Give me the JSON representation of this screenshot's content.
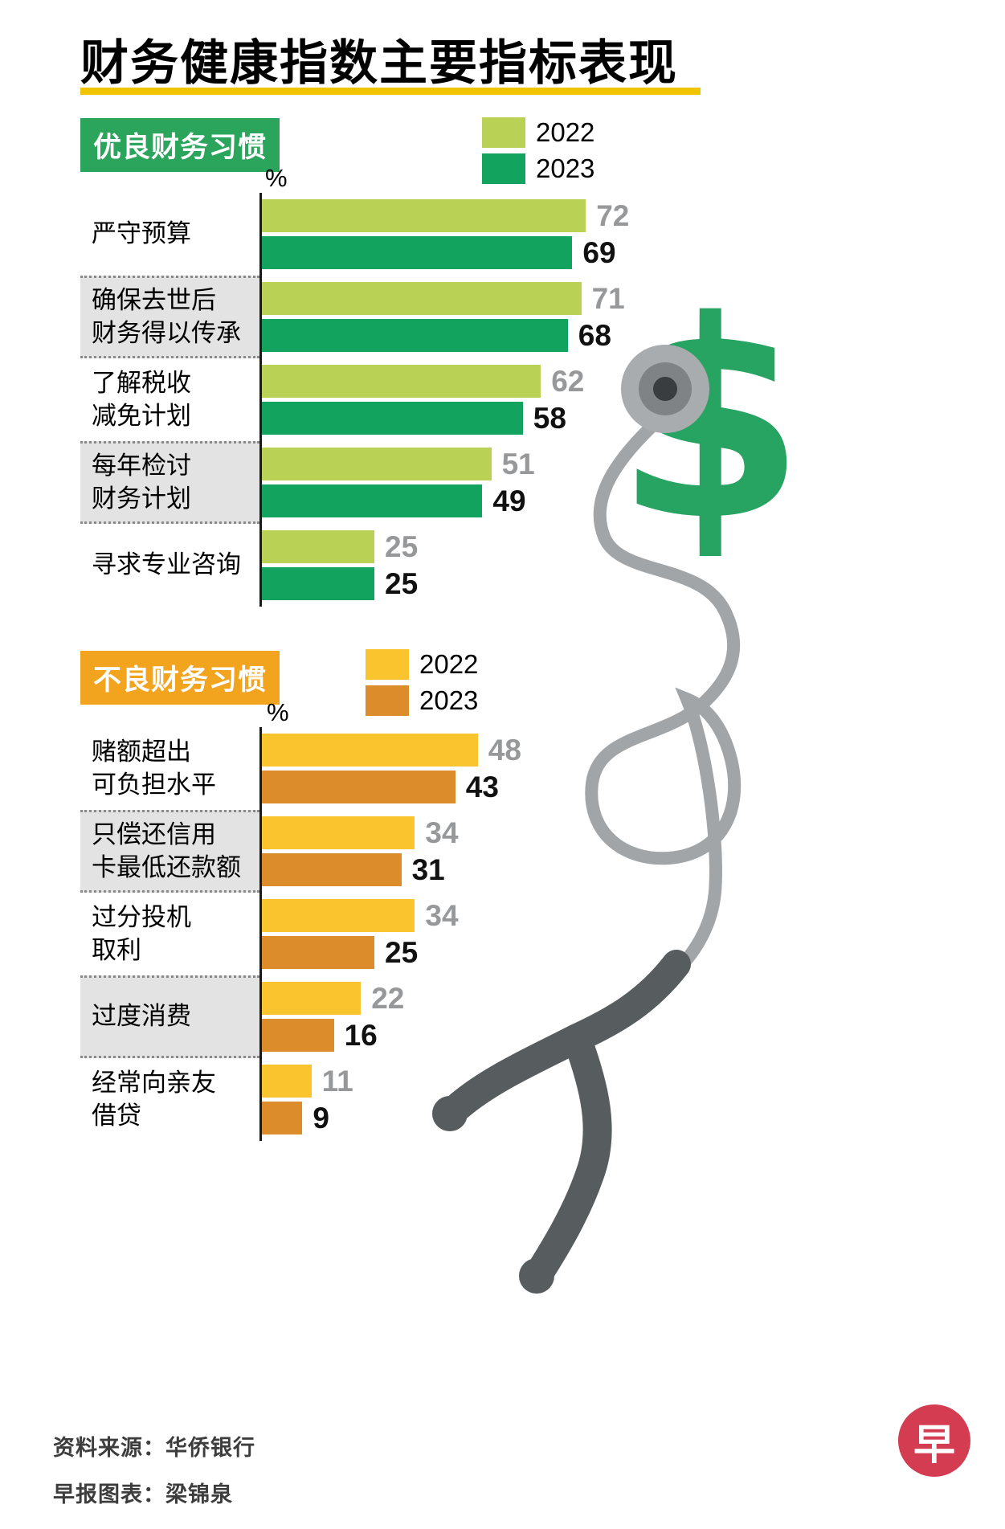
{
  "title": "财务健康指数主要指标表现",
  "footer": {
    "source": "资料来源：华侨银行",
    "credit": "早报图表：梁锦泉"
  },
  "logo": {
    "char": "早",
    "color": "#d43c51"
  },
  "colors": {
    "title_underline": "#f0c400",
    "dollar_green": "#27a462",
    "tube_gray": "#a2a5a7",
    "tube_dark": "#575c5f",
    "chest_outer": "#a9acae",
    "chest_ring": "#7f8385",
    "chest_center": "#3a3d3f"
  },
  "illustration": {
    "dollar_sign": "$"
  },
  "chart_data": [
    {
      "type": "bar",
      "orientation": "horizontal",
      "title": "优良财务习惯",
      "title_bg": "#2ba45c",
      "unit": "%",
      "xlim": [
        0,
        80
      ],
      "legend_position": "top-right",
      "legend": [
        {
          "name": "2022",
          "color": "#b9d154",
          "value_color": "#97989a"
        },
        {
          "name": "2023",
          "color": "#12a35e",
          "value_color": "#111111"
        }
      ],
      "categories": [
        "严守预算",
        "确保去世后\n财务得以传承",
        "了解税收\n减免计划",
        "每年检讨\n财务计划",
        "寻求专业咨询"
      ],
      "series": [
        {
          "name": "2022",
          "values": [
            72,
            71,
            62,
            51,
            25
          ]
        },
        {
          "name": "2023",
          "values": [
            69,
            68,
            58,
            49,
            25
          ]
        }
      ]
    },
    {
      "type": "bar",
      "orientation": "horizontal",
      "title": "不良财务习惯",
      "title_bg": "#f2a41f",
      "unit": "%",
      "xlim": [
        0,
        80
      ],
      "legend_position": "top-right",
      "legend": [
        {
          "name": "2022",
          "color": "#fac42e",
          "value_color": "#97989a"
        },
        {
          "name": "2023",
          "color": "#dd8c2b",
          "value_color": "#111111"
        }
      ],
      "categories": [
        "赌额超出\n可负担水平",
        "只偿还信用\n卡最低还款额",
        "过分投机\n取利",
        "过度消费",
        "经常向亲友\n借贷"
      ],
      "series": [
        {
          "name": "2022",
          "values": [
            48,
            34,
            34,
            22,
            11
          ]
        },
        {
          "name": "2023",
          "values": [
            43,
            31,
            25,
            16,
            9
          ]
        }
      ]
    }
  ]
}
